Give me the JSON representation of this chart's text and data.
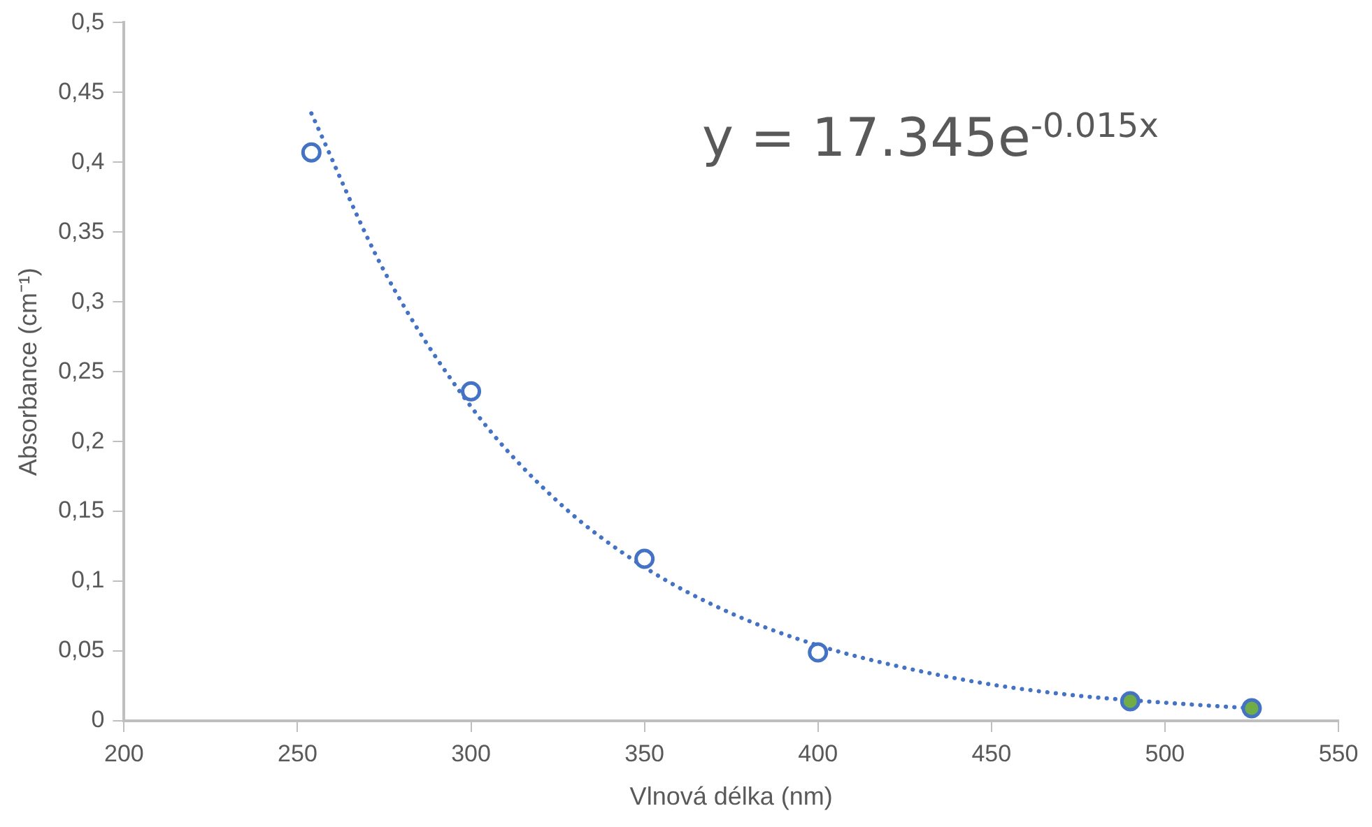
{
  "chart_data": {
    "type": "scatter",
    "xlabel": "Vlnová délka (nm)",
    "ylabel": "Absorbance (cm⁻¹)",
    "annotations": [
      "y = 17.345e$^{-0.015x}$"
    ],
    "xlim": [
      200,
      550
    ],
    "xticks": [
      200,
      250,
      300,
      350,
      400,
      450,
      500,
      550
    ],
    "ylim": [
      0,
      0.5
    ],
    "yticks": [
      0,
      {
        "value": 0.05,
        "label": "0,05"
      },
      {
        "value": 0.1,
        "label": "0,1"
      },
      {
        "value": 0.15,
        "label": "0,15"
      },
      {
        "value": 0.2,
        "label": "0,2"
      },
      {
        "value": 0.25,
        "label": "0,25"
      },
      {
        "value": 0.3,
        "label": "0,3"
      },
      {
        "value": 0.35,
        "label": "0,35"
      },
      {
        "value": 0.4,
        "label": "0,4"
      },
      {
        "value": 0.45,
        "label": "0,45"
      },
      {
        "value": 0.5,
        "label": "0,5"
      }
    ],
    "grid": false,
    "legend": false,
    "marker": "circle",
    "series": [
      {
        "type": "scatter",
        "color": "#4472c4",
        "x": [
          254,
          300,
          350,
          400
        ],
        "values": [
          0.407,
          0.236,
          0.116,
          0.049
        ]
      },
      {
        "type": "scatter",
        "color": "#70ad47",
        "x": [
          490,
          525
        ],
        "values": [
          0.014,
          0.009
        ]
      },
      {
        "type": "line",
        "color": "#4472c4",
        "line_style": "dotted",
        "marker": "none",
        "x": [
          254,
          275,
          300,
          325,
          350,
          375,
          400,
          425,
          450,
          475,
          500,
          525
        ],
        "values": [
          0.435,
          0.322,
          0.225,
          0.157,
          0.11,
          0.077,
          0.054,
          0.038,
          0.026,
          0.018,
          0.013,
          0.009
        ]
      }
    ]
  }
}
